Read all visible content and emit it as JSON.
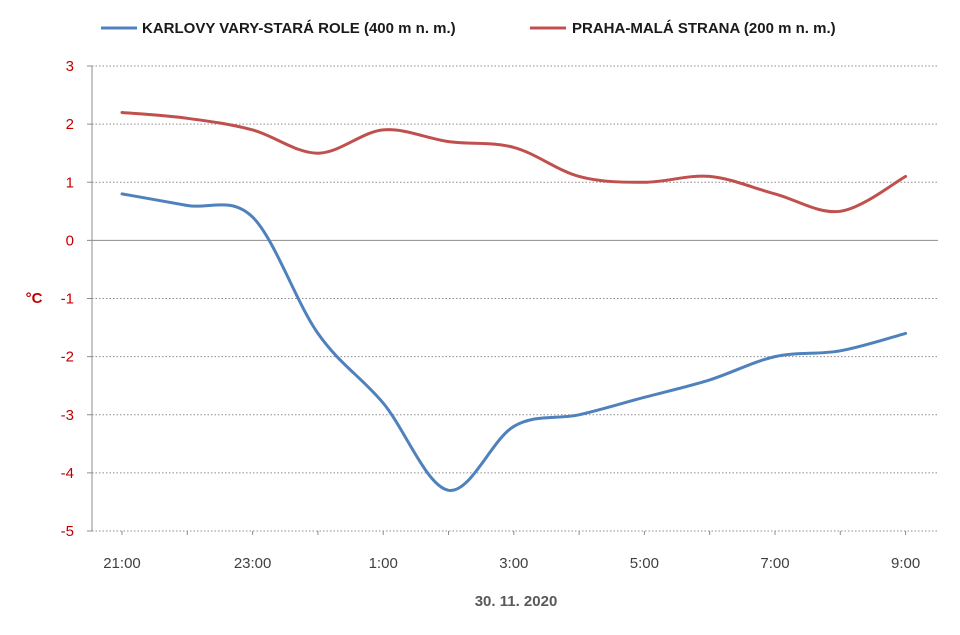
{
  "chart_data": {
    "type": "line",
    "xlabel": "30. 11. 2020",
    "ylabel": "°C",
    "ylim": [
      -5,
      3
    ],
    "yticks": [
      "3",
      "2",
      "1",
      "0",
      "-1",
      "-2",
      "-3",
      "-4",
      "-5"
    ],
    "x": [
      "21:00",
      "22:00",
      "23:00",
      "0:00",
      "1:00",
      "2:00",
      "3:00",
      "4:00",
      "5:00",
      "6:00",
      "7:00",
      "8:00",
      "9:00"
    ],
    "xtick_labels": [
      "21:00",
      "23:00",
      "1:00",
      "3:00",
      "5:00",
      "7:00",
      "9:00"
    ],
    "grid": "horizontal-dotted",
    "legend_position": "top",
    "series": [
      {
        "name": "KARLOVY VARY-STARÁ ROLE (400 m n. m.)",
        "color": "#4f81bd",
        "values": [
          0.8,
          0.6,
          0.4,
          -1.6,
          -2.8,
          -4.3,
          -3.2,
          -3.0,
          -2.7,
          -2.4,
          -2.0,
          -1.9,
          -1.6
        ]
      },
      {
        "name": "PRAHA-MALÁ STRANA (200 m n. m.)",
        "color": "#c0504d",
        "values": [
          2.2,
          2.1,
          1.9,
          1.5,
          1.9,
          1.7,
          1.6,
          1.1,
          1.0,
          1.1,
          0.8,
          0.5,
          1.1
        ]
      }
    ]
  }
}
